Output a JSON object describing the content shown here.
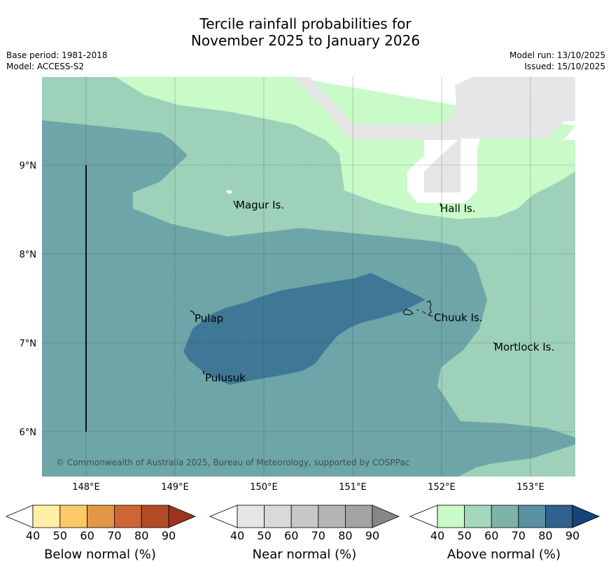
{
  "header": {
    "title_line1": "Tercile rainfall probabilities for",
    "title_line2": "November 2025 to January 2026",
    "base_period": "Base period: 1981-2018",
    "model": "Model: ACCESS-S2",
    "model_run": "Model run: 13/10/2025",
    "issued": "Issued: 15/10/2025"
  },
  "map": {
    "copyright": "© Commonwealth of Australia 2025, Bureau of Meteorology, supported by COSPPac",
    "lon_ticks": [
      "148°E",
      "149°E",
      "150°E",
      "151°E",
      "152°E",
      "153°E"
    ],
    "lat_ticks": [
      "9°N",
      "8°N",
      "7°N",
      "6°N"
    ],
    "islands": {
      "magur": "Magur Is.",
      "hall": "Hall Is.",
      "pulap": "Pulap",
      "chuuk": "Chuuk Is.",
      "mortlock": "Mortlock Is.",
      "pulusuk": "Pulusuk"
    },
    "fill_colors": {
      "above_40_50": "#c8fbc8",
      "above_50_60": "#9dd1b9",
      "above_60_70": "#6ea5a8",
      "above_70_80": "#3f7896",
      "near_normal": "#e6e6e6"
    }
  },
  "colorbars": {
    "ticks": [
      "40",
      "50",
      "60",
      "70",
      "80",
      "90"
    ],
    "below": {
      "title": "Below normal (%)",
      "colors": [
        "#ffeea6",
        "#fdca67",
        "#e49647",
        "#cf6434",
        "#b24c27",
        "#9a3421"
      ]
    },
    "near": {
      "title": "Near normal (%)",
      "colors": [
        "#e6e6e6",
        "#d9d9d9",
        "#c8c8c8",
        "#b5b5b5",
        "#a3a3a3",
        "#878787"
      ]
    },
    "above": {
      "title": "Above normal (%)",
      "colors": [
        "#c8fbc8",
        "#a4d8bc",
        "#7fb3a8",
        "#5a92a1",
        "#30618f",
        "#15447a"
      ]
    }
  }
}
